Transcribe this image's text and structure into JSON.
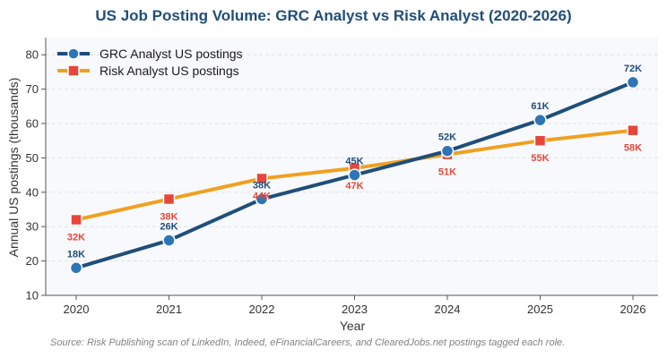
{
  "chart_data": {
    "type": "line",
    "title": "US Job Posting Volume: GRC Analyst vs Risk Analyst (2020-2026)",
    "xlabel": "Year",
    "ylabel": "Annual US postings (thousands)",
    "x": [
      "2020",
      "2021",
      "2022",
      "2023",
      "2024",
      "2025",
      "2026"
    ],
    "ylim": [
      10,
      85
    ],
    "yticks": [
      "10",
      "20",
      "30",
      "40",
      "50",
      "60",
      "70",
      "80"
    ],
    "grid": "horizontal dashed",
    "legend": "top-left",
    "series": [
      {
        "name": "GRC Analyst US postings",
        "values": [
          18,
          26,
          38,
          45,
          52,
          61,
          72
        ],
        "labels": [
          "18K",
          "26K",
          "38K",
          "45K",
          "52K",
          "61K",
          "72K"
        ],
        "color": "#1f4e79",
        "marker_color": "#2e75b6",
        "label_color": "#1f4e79",
        "marker": "circle"
      },
      {
        "name": "Risk Analyst US postings",
        "values": [
          32,
          38,
          44,
          47,
          51,
          55,
          58
        ],
        "labels": [
          "32K",
          "38K",
          "44K",
          "47K",
          "51K",
          "55K",
          "58K"
        ],
        "color": "#f0a020",
        "marker_color": "#e8463a",
        "label_color": "#e8463a",
        "marker": "square"
      }
    ],
    "source": "Source: Risk Publishing scan of LinkedIn, Indeed, eFinancialCareers, and ClearedJobs.net postings tagged each role."
  }
}
